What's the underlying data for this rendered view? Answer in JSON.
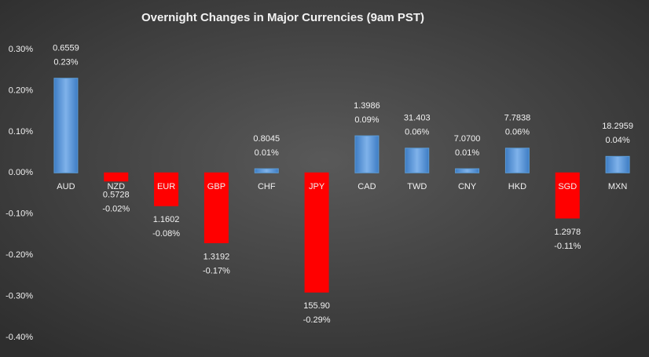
{
  "chart_data": {
    "type": "bar",
    "title": "Overnight Changes in Major Currencies (9am PST)",
    "categories": [
      "AUD",
      "NZD",
      "EUR",
      "GBP",
      "CHF",
      "JPY",
      "CAD",
      "TWD",
      "CNY",
      "HKD",
      "SGD",
      "MXN"
    ],
    "values": [
      0.23,
      -0.02,
      -0.08,
      -0.17,
      0.01,
      -0.29,
      0.09,
      0.06,
      0.01,
      0.06,
      -0.11,
      0.04
    ],
    "value_labels": [
      "0.23%",
      "-0.02%",
      "-0.08%",
      "-0.17%",
      "0.01%",
      "-0.29%",
      "0.09%",
      "0.06%",
      "0.01%",
      "0.06%",
      "-0.11%",
      "0.04%"
    ],
    "rate_labels": [
      "0.6559",
      "0.5728",
      "1.1602",
      "1.3192",
      "0.8045",
      "155.90",
      "1.3986",
      "31.403",
      "7.0700",
      "7.7838",
      "1.2978",
      "18.2959"
    ],
    "positive_color": "#5b9bd5",
    "negative_color": "#ff0000",
    "ylim": [
      -0.4,
      0.3
    ],
    "yticks": [
      {
        "value": -0.4,
        "label": "-0.40%"
      },
      {
        "value": -0.3,
        "label": "-0.30%"
      },
      {
        "value": -0.2,
        "label": "-0.20%"
      },
      {
        "value": -0.1,
        "label": "-0.10%"
      },
      {
        "value": 0,
        "label": "0.00%"
      },
      {
        "value": 0.1,
        "label": "0.10%"
      },
      {
        "value": 0.2,
        "label": "0.20%"
      },
      {
        "value": 0.3,
        "label": "0.30%"
      }
    ],
    "grid": false
  }
}
